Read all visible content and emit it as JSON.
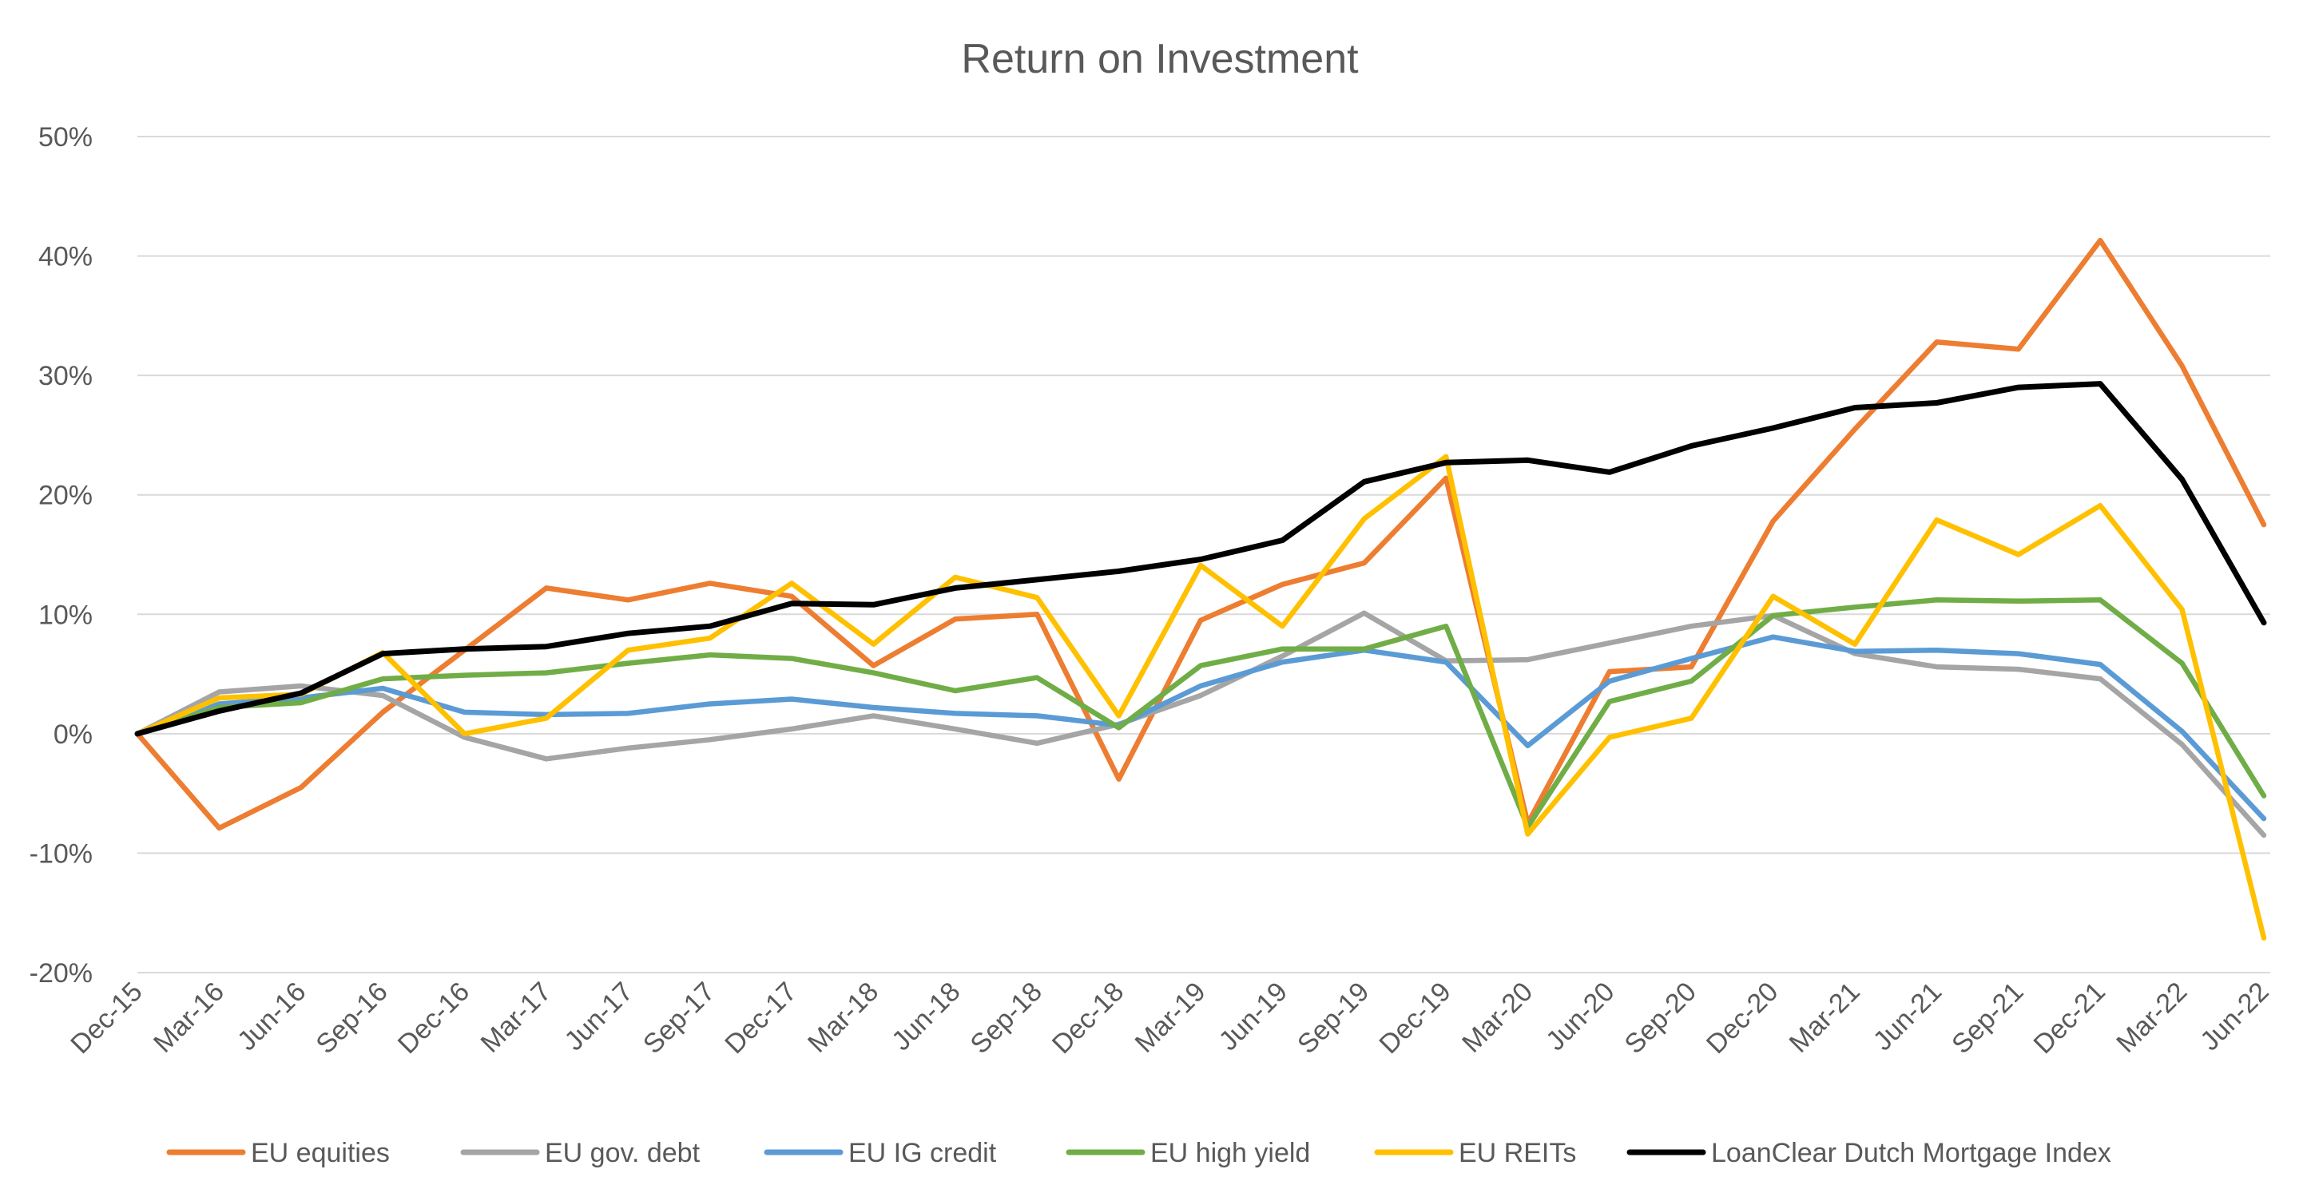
{
  "chart_data": {
    "type": "line",
    "title": "Return on Investment",
    "xlabel": "",
    "ylabel": "",
    "ylim": [
      -20,
      50
    ],
    "y_tick_values": [
      50,
      40,
      30,
      20,
      10,
      0,
      -10,
      -20
    ],
    "y_tick_labels": [
      "50%",
      "40%",
      "30%",
      "20%",
      "10%",
      "0%",
      "-10%",
      "-20%"
    ],
    "grid": true,
    "legend_position": "bottom",
    "x": [
      "Dec-15",
      "Mar-16",
      "Jun-16",
      "Sep-16",
      "Dec-16",
      "Mar-17",
      "Jun-17",
      "Sep-17",
      "Dec-17",
      "Mar-18",
      "Jun-18",
      "Sep-18",
      "Dec-18",
      "Mar-19",
      "Jun-19",
      "Sep-19",
      "Dec-19",
      "Mar-20",
      "Jun-20",
      "Sep-20",
      "Dec-20",
      "Mar-21",
      "Jun-21",
      "Sep-21",
      "Dec-21",
      "Mar-22",
      "Jun-22"
    ],
    "series": [
      {
        "name": "EU equities",
        "color": "#ED7D31",
        "values": [
          0,
          -7.9,
          -4.5,
          1.8,
          7.0,
          12.2,
          11.2,
          12.6,
          11.5,
          5.7,
          9.6,
          10.0,
          -3.8,
          9.5,
          12.5,
          14.3,
          21.4,
          -7.5,
          5.2,
          5.6,
          17.8,
          25.5,
          32.8,
          32.2,
          41.3,
          30.8,
          17.5
        ]
      },
      {
        "name": "EU gov. debt",
        "color": "#A5A5A5",
        "values": [
          0,
          3.5,
          4.0,
          3.2,
          -0.3,
          -2.1,
          -1.2,
          -0.5,
          0.4,
          1.5,
          0.4,
          -0.8,
          0.8,
          3.2,
          6.5,
          10.1,
          6.1,
          6.2,
          7.6,
          9.0,
          9.9,
          6.7,
          5.6,
          5.4,
          4.6,
          -0.9,
          -8.5
        ]
      },
      {
        "name": "EU IG credit",
        "color": "#5B9BD5",
        "values": [
          0,
          2.5,
          3.0,
          3.8,
          1.8,
          1.6,
          1.7,
          2.5,
          2.9,
          2.2,
          1.7,
          1.5,
          0.7,
          4.0,
          6.0,
          7.0,
          6.0,
          -1.0,
          4.4,
          6.3,
          8.1,
          6.9,
          7.0,
          6.7,
          5.8,
          0.2,
          -7.1
        ]
      },
      {
        "name": "EU high yield",
        "color": "#70AD47",
        "values": [
          0,
          2.2,
          2.6,
          4.6,
          4.9,
          5.1,
          5.9,
          6.6,
          6.3,
          5.1,
          3.6,
          4.7,
          0.5,
          5.7,
          7.1,
          7.1,
          9.0,
          -7.8,
          2.7,
          4.4,
          9.9,
          10.6,
          11.2,
          11.1,
          11.2,
          5.9,
          -5.2
        ]
      },
      {
        "name": "EU REITs",
        "color": "#FFC000",
        "values": [
          0,
          3.0,
          3.3,
          6.8,
          0.0,
          1.3,
          7.0,
          8.0,
          12.6,
          7.5,
          13.1,
          11.4,
          1.5,
          14.1,
          9.0,
          18.0,
          23.2,
          -8.4,
          -0.3,
          1.3,
          11.5,
          7.5,
          17.9,
          15.0,
          19.1,
          10.4,
          -17.1
        ]
      },
      {
        "name": "LoanClear Dutch Mortgage Index",
        "color": "#000000",
        "values": [
          0,
          1.9,
          3.4,
          6.7,
          7.1,
          7.3,
          8.4,
          9.0,
          10.9,
          10.8,
          12.2,
          12.9,
          13.6,
          14.6,
          16.2,
          21.1,
          22.7,
          22.9,
          21.9,
          24.1,
          25.6,
          27.3,
          27.7,
          29.0,
          29.3,
          21.3,
          9.3
        ]
      }
    ]
  }
}
